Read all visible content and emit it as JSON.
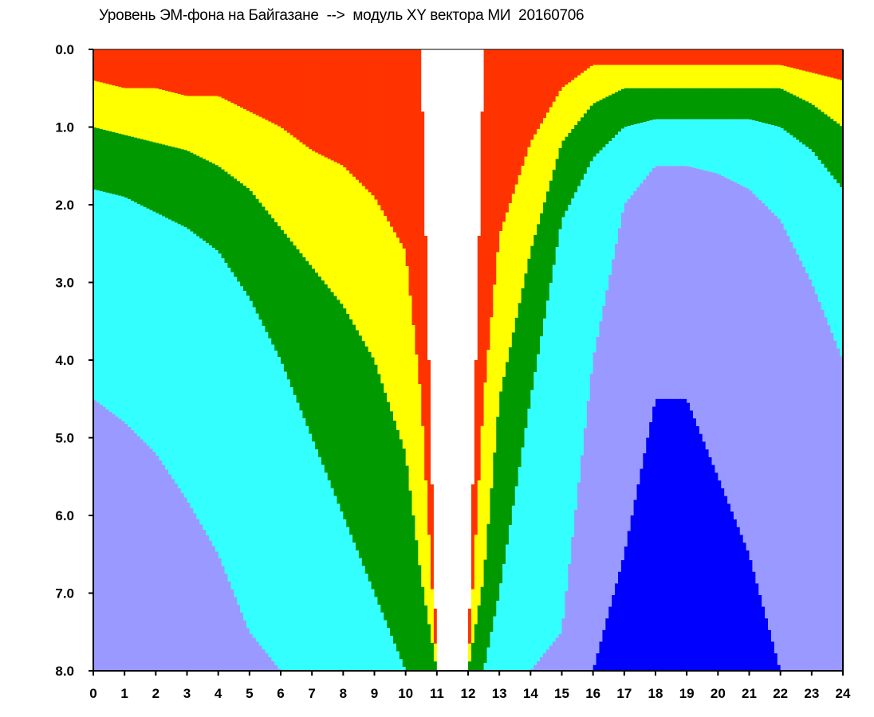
{
  "chart_data": {
    "type": "heatmap",
    "title": "Уровень ЭМ-фона на Байгазане  -->  модуль XY вектора МИ  20160706",
    "xlabel": "",
    "ylabel": "",
    "xlim": [
      0,
      24
    ],
    "ylim": [
      0,
      8
    ],
    "y_inverted": true,
    "x_ticks": [
      "0",
      "1",
      "2",
      "3",
      "4",
      "5",
      "6",
      "7",
      "8",
      "9",
      "10",
      "11",
      "12",
      "13",
      "14",
      "15",
      "16",
      "17",
      "18",
      "19",
      "20",
      "21",
      "22",
      "23",
      "24"
    ],
    "y_ticks": [
      "0.0",
      "1.0",
      "2.0",
      "3.0",
      "4.0",
      "5.0",
      "6.0",
      "7.0",
      "8.0"
    ],
    "grid": false,
    "legend": "none",
    "colormap": [
      "#0000ff",
      "#9999ff",
      "#33ffff",
      "#009900",
      "#ffff00",
      "#ff3300",
      "#ffffff"
    ],
    "colormap_meaning": "point density from low (blue) to high (red); white = no data",
    "columns_per_hour": 10,
    "series": [
      {
        "values_description": "top-of-color-band depths (y units) for each band boundary by hour",
        "x": [
          0,
          1,
          2,
          3,
          4,
          5,
          6,
          7,
          8,
          9,
          10,
          10.5,
          11,
          11.5,
          12,
          12.5,
          13,
          14,
          15,
          16,
          17,
          18,
          19,
          20,
          21,
          22,
          23,
          24
        ],
        "empty_top": [
          0,
          0,
          0,
          0,
          0,
          0,
          0,
          0,
          0,
          0,
          0,
          0,
          8,
          8,
          8,
          0,
          0,
          0,
          0,
          0,
          0,
          0,
          0,
          0,
          0,
          0,
          0,
          0
        ],
        "red_to_yellow": [
          0.4,
          0.5,
          0.5,
          0.6,
          0.6,
          0.8,
          1.0,
          1.3,
          1.5,
          1.9,
          2.6,
          4.5,
          8,
          8,
          8,
          4.5,
          2.4,
          1.2,
          0.5,
          0.2,
          0.2,
          0.2,
          0.2,
          0.2,
          0.2,
          0.2,
          0.3,
          0.4
        ],
        "yellow_to_green": [
          1.0,
          1.1,
          1.2,
          1.3,
          1.5,
          1.8,
          2.3,
          2.8,
          3.3,
          4.0,
          5.2,
          6.8,
          8,
          8,
          8,
          6.8,
          4.5,
          2.6,
          1.2,
          0.7,
          0.5,
          0.5,
          0.5,
          0.5,
          0.5,
          0.5,
          0.7,
          1.0
        ],
        "green_to_cyan": [
          1.8,
          1.9,
          2.1,
          2.3,
          2.6,
          3.2,
          4.0,
          5.0,
          6.0,
          7.0,
          8,
          8,
          8,
          8,
          8,
          8,
          7.0,
          4.5,
          2.2,
          1.4,
          1.0,
          0.9,
          0.9,
          0.9,
          0.9,
          1.0,
          1.3,
          1.8
        ],
        "cyan_to_lightblue": [
          4.5,
          4.8,
          5.2,
          5.8,
          6.5,
          7.5,
          8,
          8,
          8,
          8,
          8,
          8,
          8,
          8,
          8,
          8,
          8,
          8,
          7.5,
          4.0,
          2.0,
          1.5,
          1.5,
          1.6,
          1.8,
          2.2,
          3.0,
          4.0
        ],
        "lightblue_to_blue": [
          8,
          8,
          8,
          8,
          8,
          8,
          8,
          8,
          8,
          8,
          8,
          8,
          8,
          8,
          8,
          8,
          8,
          8,
          8,
          8,
          6.5,
          4.5,
          4.5,
          5.5,
          6.5,
          8,
          8,
          8
        ]
      }
    ]
  }
}
